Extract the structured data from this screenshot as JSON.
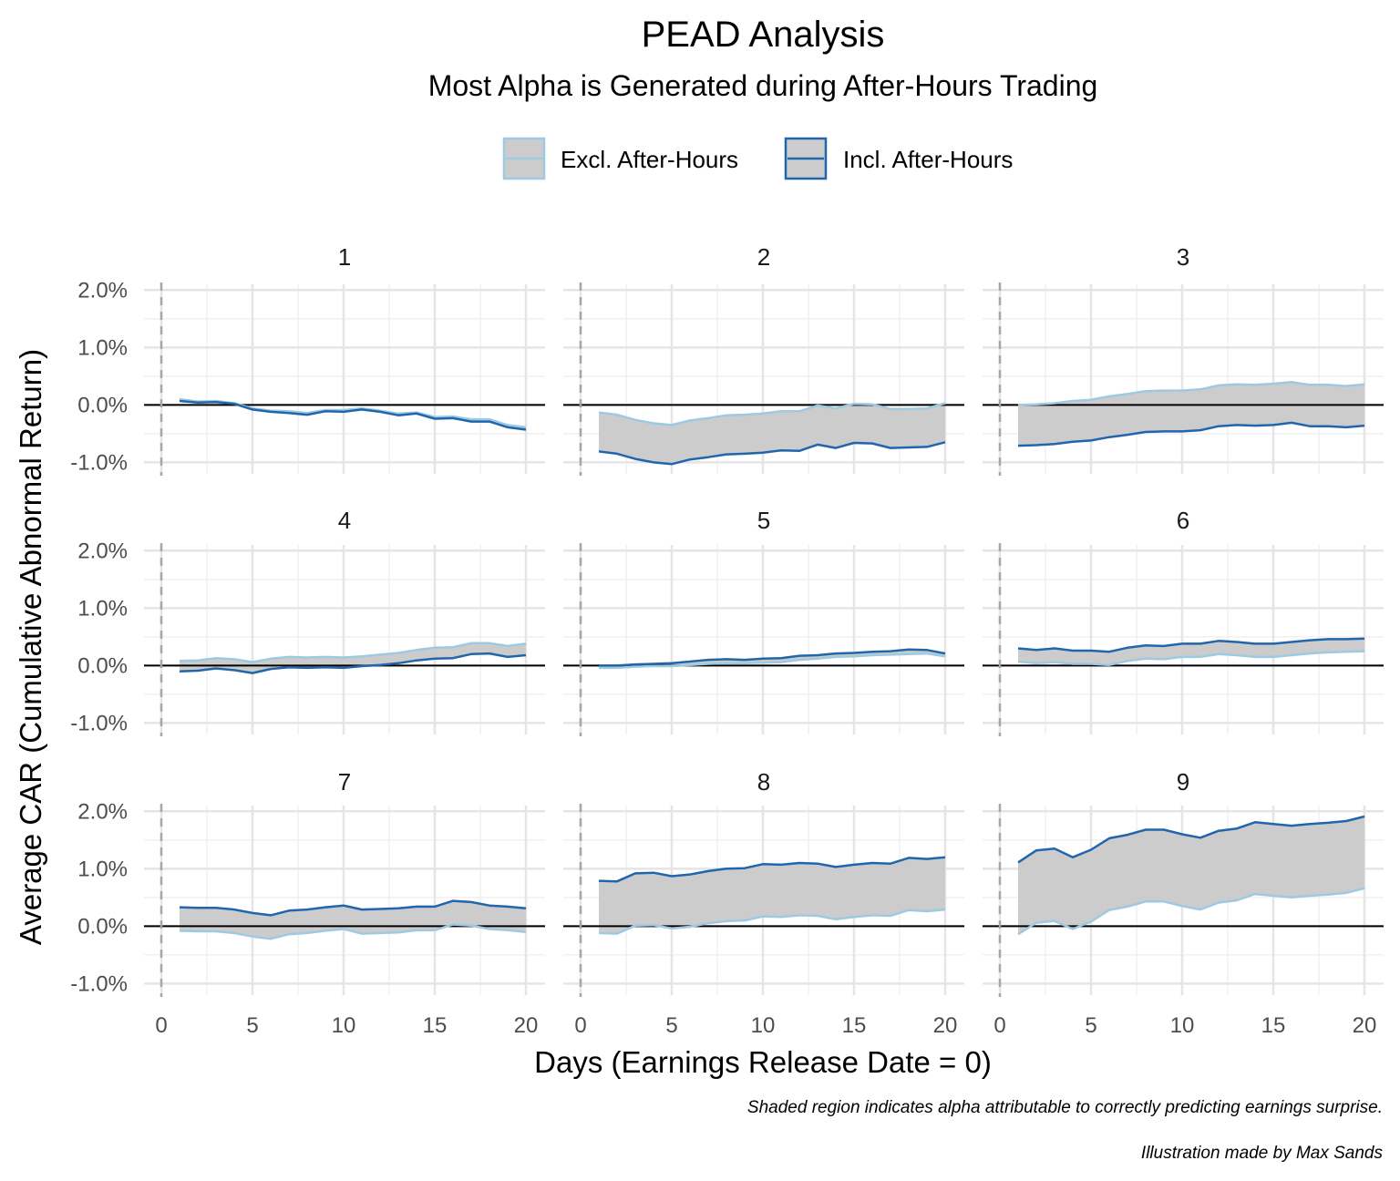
{
  "colors": {
    "excl": "#9ecae1",
    "incl": "#2166ac",
    "fill": "#cccccc",
    "grid_major": "#e5e5e5",
    "grid_minor": "#f0f0f0",
    "zero": "#000000",
    "vline": "#a6a6a6"
  },
  "chart_data": {
    "type": "line",
    "title": "PEAD Analysis",
    "subtitle": "Most Alpha is Generated during After-Hours Trading",
    "xlabel": "Days (Earnings Release Date = 0)",
    "ylabel": "Average CAR (Cumulative Abnormal Return)",
    "caption": "Shaded region indicates alpha attributable to correctly predicting earnings surprise.",
    "credit": "Illustration made by Max Sands",
    "legend": {
      "position": "top",
      "entries": [
        "Excl. After-Hours",
        "Incl. After-Hours"
      ]
    },
    "xlim": [
      0,
      20
    ],
    "ylim": [
      -1.0,
      2.0
    ],
    "x_ticks": [
      0,
      5,
      10,
      15,
      20
    ],
    "x_tick_labels": [
      "0",
      "5",
      "10",
      "15",
      "20"
    ],
    "y_ticks": [
      -1.0,
      0.0,
      1.0,
      2.0
    ],
    "y_tick_labels": [
      "-1.0%",
      "0.0%",
      "1.0%",
      "2.0%"
    ],
    "vline_x": 0,
    "hline_y": 0,
    "x": [
      1,
      2,
      3,
      4,
      5,
      6,
      7,
      8,
      9,
      10,
      11,
      12,
      13,
      14,
      15,
      16,
      17,
      18,
      19,
      20
    ],
    "facets": [
      {
        "label": "1",
        "excl": [
          0.1,
          0.06,
          0.07,
          0.03,
          -0.06,
          -0.1,
          -0.11,
          -0.14,
          -0.09,
          -0.09,
          -0.06,
          -0.1,
          -0.15,
          -0.13,
          -0.21,
          -0.2,
          -0.25,
          -0.25,
          -0.35,
          -0.39
        ],
        "incl": [
          0.07,
          0.04,
          0.05,
          0.02,
          -0.08,
          -0.12,
          -0.14,
          -0.17,
          -0.11,
          -0.12,
          -0.08,
          -0.12,
          -0.18,
          -0.15,
          -0.24,
          -0.23,
          -0.29,
          -0.29,
          -0.39,
          -0.43
        ]
      },
      {
        "label": "2",
        "excl": [
          -0.13,
          -0.17,
          -0.26,
          -0.32,
          -0.35,
          -0.27,
          -0.23,
          -0.18,
          -0.17,
          -0.15,
          -0.11,
          -0.11,
          -0.01,
          -0.06,
          0.02,
          0.01,
          -0.07,
          -0.07,
          -0.06,
          0.03
        ],
        "incl": [
          -0.81,
          -0.85,
          -0.94,
          -1.0,
          -1.03,
          -0.95,
          -0.91,
          -0.86,
          -0.85,
          -0.83,
          -0.79,
          -0.8,
          -0.69,
          -0.75,
          -0.66,
          -0.67,
          -0.75,
          -0.74,
          -0.73,
          -0.65
        ]
      },
      {
        "label": "3",
        "excl": [
          0.0,
          0.01,
          0.03,
          0.07,
          0.09,
          0.15,
          0.19,
          0.24,
          0.25,
          0.25,
          0.27,
          0.34,
          0.36,
          0.35,
          0.37,
          0.4,
          0.35,
          0.35,
          0.33,
          0.36
        ],
        "incl": [
          -0.71,
          -0.7,
          -0.68,
          -0.64,
          -0.62,
          -0.56,
          -0.52,
          -0.47,
          -0.46,
          -0.46,
          -0.44,
          -0.37,
          -0.35,
          -0.36,
          -0.35,
          -0.31,
          -0.37,
          -0.37,
          -0.39,
          -0.36
        ]
      },
      {
        "label": "4",
        "excl": [
          0.08,
          0.09,
          0.13,
          0.11,
          0.06,
          0.12,
          0.15,
          0.14,
          0.15,
          0.14,
          0.16,
          0.19,
          0.22,
          0.27,
          0.31,
          0.32,
          0.39,
          0.39,
          0.34,
          0.38
        ],
        "incl": [
          -0.1,
          -0.09,
          -0.05,
          -0.08,
          -0.13,
          -0.06,
          -0.03,
          -0.04,
          -0.03,
          -0.04,
          -0.01,
          0.01,
          0.04,
          0.09,
          0.12,
          0.13,
          0.2,
          0.21,
          0.15,
          0.18
        ]
      },
      {
        "label": "5",
        "excl": [
          -0.04,
          -0.04,
          -0.02,
          -0.01,
          -0.01,
          0.01,
          0.03,
          0.04,
          0.04,
          0.05,
          0.06,
          0.1,
          0.12,
          0.15,
          0.16,
          0.18,
          0.19,
          0.2,
          0.21,
          0.16
        ],
        "incl": [
          0.0,
          0.0,
          0.02,
          0.03,
          0.04,
          0.07,
          0.1,
          0.11,
          0.1,
          0.12,
          0.13,
          0.17,
          0.18,
          0.21,
          0.22,
          0.24,
          0.25,
          0.28,
          0.27,
          0.21
        ]
      },
      {
        "label": "6",
        "excl": [
          0.07,
          0.04,
          0.06,
          0.03,
          0.03,
          0.01,
          0.08,
          0.12,
          0.11,
          0.15,
          0.15,
          0.2,
          0.18,
          0.15,
          0.15,
          0.18,
          0.21,
          0.23,
          0.24,
          0.25
        ],
        "incl": [
          0.3,
          0.27,
          0.3,
          0.26,
          0.26,
          0.24,
          0.31,
          0.35,
          0.34,
          0.38,
          0.38,
          0.43,
          0.41,
          0.38,
          0.38,
          0.41,
          0.44,
          0.46,
          0.46,
          0.47
        ]
      },
      {
        "label": "7",
        "excl": [
          -0.08,
          -0.09,
          -0.09,
          -0.12,
          -0.18,
          -0.22,
          -0.14,
          -0.12,
          -0.08,
          -0.05,
          -0.13,
          -0.12,
          -0.11,
          -0.07,
          -0.07,
          0.03,
          0.01,
          -0.05,
          -0.07,
          -0.1
        ],
        "incl": [
          0.33,
          0.32,
          0.32,
          0.29,
          0.23,
          0.19,
          0.27,
          0.29,
          0.33,
          0.36,
          0.29,
          0.3,
          0.31,
          0.34,
          0.34,
          0.44,
          0.42,
          0.36,
          0.34,
          0.31
        ]
      },
      {
        "label": "8",
        "excl": [
          -0.12,
          -0.13,
          0.01,
          0.02,
          -0.04,
          -0.01,
          0.05,
          0.09,
          0.1,
          0.17,
          0.16,
          0.19,
          0.18,
          0.12,
          0.16,
          0.19,
          0.18,
          0.28,
          0.26,
          0.29
        ],
        "incl": [
          0.79,
          0.78,
          0.92,
          0.93,
          0.87,
          0.9,
          0.96,
          1.0,
          1.01,
          1.08,
          1.07,
          1.1,
          1.09,
          1.03,
          1.07,
          1.1,
          1.09,
          1.19,
          1.17,
          1.2
        ]
      },
      {
        "label": "9",
        "excl": [
          -0.14,
          0.06,
          0.09,
          -0.05,
          0.08,
          0.28,
          0.34,
          0.43,
          0.43,
          0.35,
          0.29,
          0.41,
          0.45,
          0.56,
          0.53,
          0.5,
          0.53,
          0.55,
          0.58,
          0.66
        ],
        "incl": [
          1.11,
          1.32,
          1.35,
          1.2,
          1.33,
          1.53,
          1.59,
          1.68,
          1.68,
          1.6,
          1.54,
          1.66,
          1.7,
          1.81,
          1.78,
          1.75,
          1.78,
          1.8,
          1.83,
          1.91
        ]
      }
    ]
  }
}
